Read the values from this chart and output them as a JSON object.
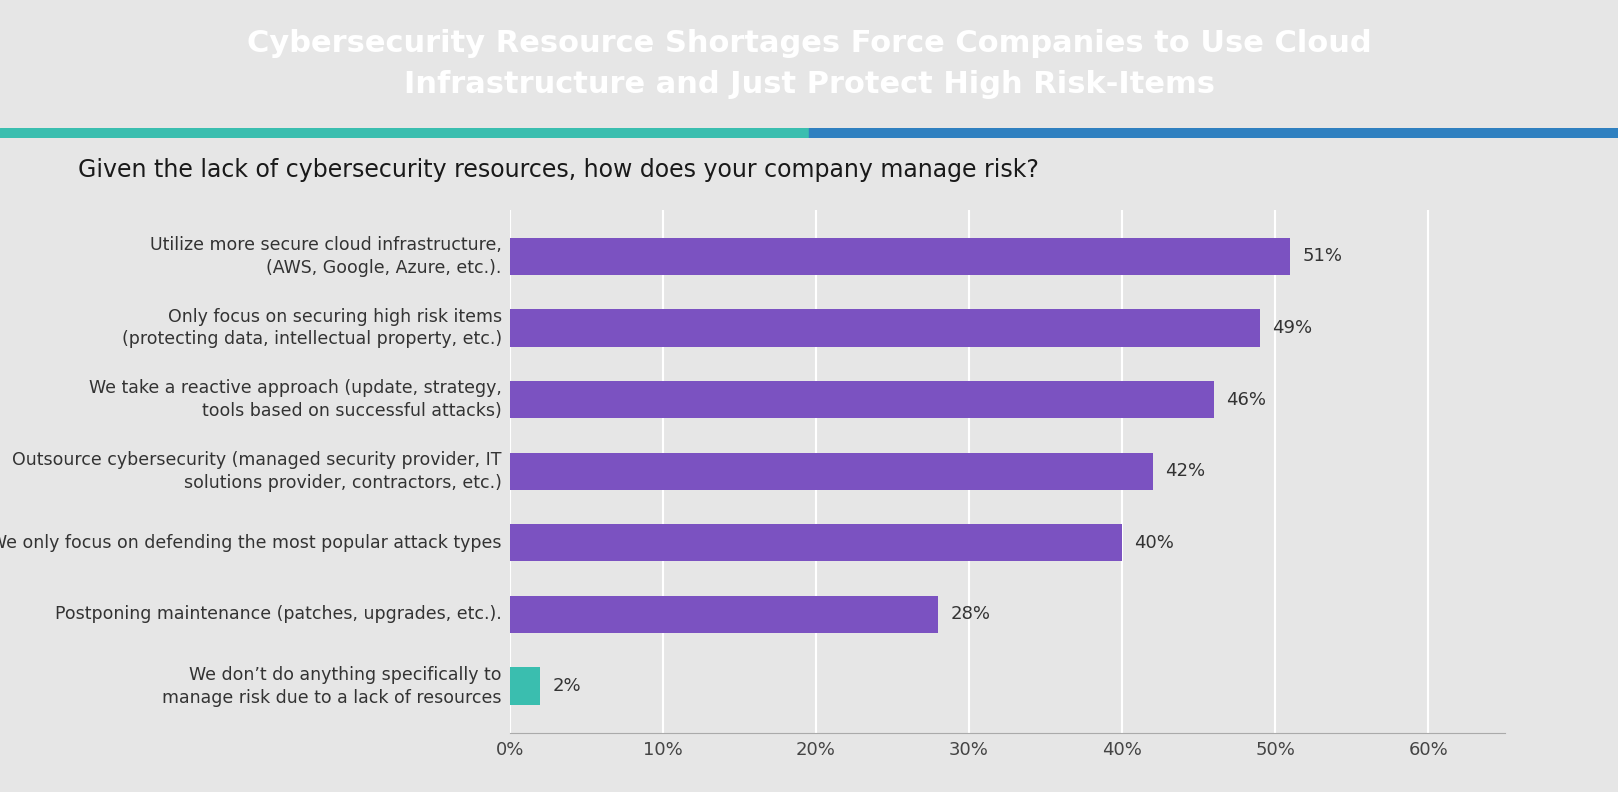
{
  "title": "Cybersecurity Resource Shortages Force Companies to Use Cloud\nInfrastructure and Just Protect High Risk-Items",
  "subtitle": "Given the lack of cybersecurity resources, how does your company manage risk?",
  "categories": [
    "Utilize more secure cloud infrastructure,\n(AWS, Google, Azure, etc.).",
    "Only focus on securing high risk items\n(protecting data, intellectual property, etc.)",
    "We take a reactive approach (update, strategy,\ntools based on successful attacks)",
    "Outsource cybersecurity (managed security provider, IT\nsolutions provider, contractors, etc.)",
    "We only focus on defending the most popular attack types",
    "Postponing maintenance (patches, upgrades, etc.).",
    "We don’t do anything specifically to\nmanage risk due to a lack of resources"
  ],
  "values": [
    51,
    49,
    46,
    42,
    40,
    28,
    2
  ],
  "bar_colors": [
    "#7B52C1",
    "#7B52C1",
    "#7B52C1",
    "#7B52C1",
    "#7B52C1",
    "#7B52C1",
    "#3ABEAF"
  ],
  "header_bg_color": "#152544",
  "chart_bg_color": "#E6E6E6",
  "title_color": "#FFFFFF",
  "subtitle_color": "#1a1a1a",
  "bar_label_color": "#333333",
  "tick_label_color": "#444444",
  "x_ticks": [
    0,
    10,
    20,
    30,
    40,
    50,
    60
  ],
  "x_tick_labels": [
    "0%",
    "10%",
    "20%",
    "30%",
    "40%",
    "50%",
    "60%"
  ],
  "xlim": [
    0,
    65
  ],
  "accent_colors": [
    "#3ABEAF",
    "#2F80C0"
  ],
  "title_fontsize": 22,
  "subtitle_fontsize": 17,
  "bar_label_fontsize": 13,
  "tick_fontsize": 13,
  "category_fontsize": 12.5,
  "bar_height": 0.52
}
